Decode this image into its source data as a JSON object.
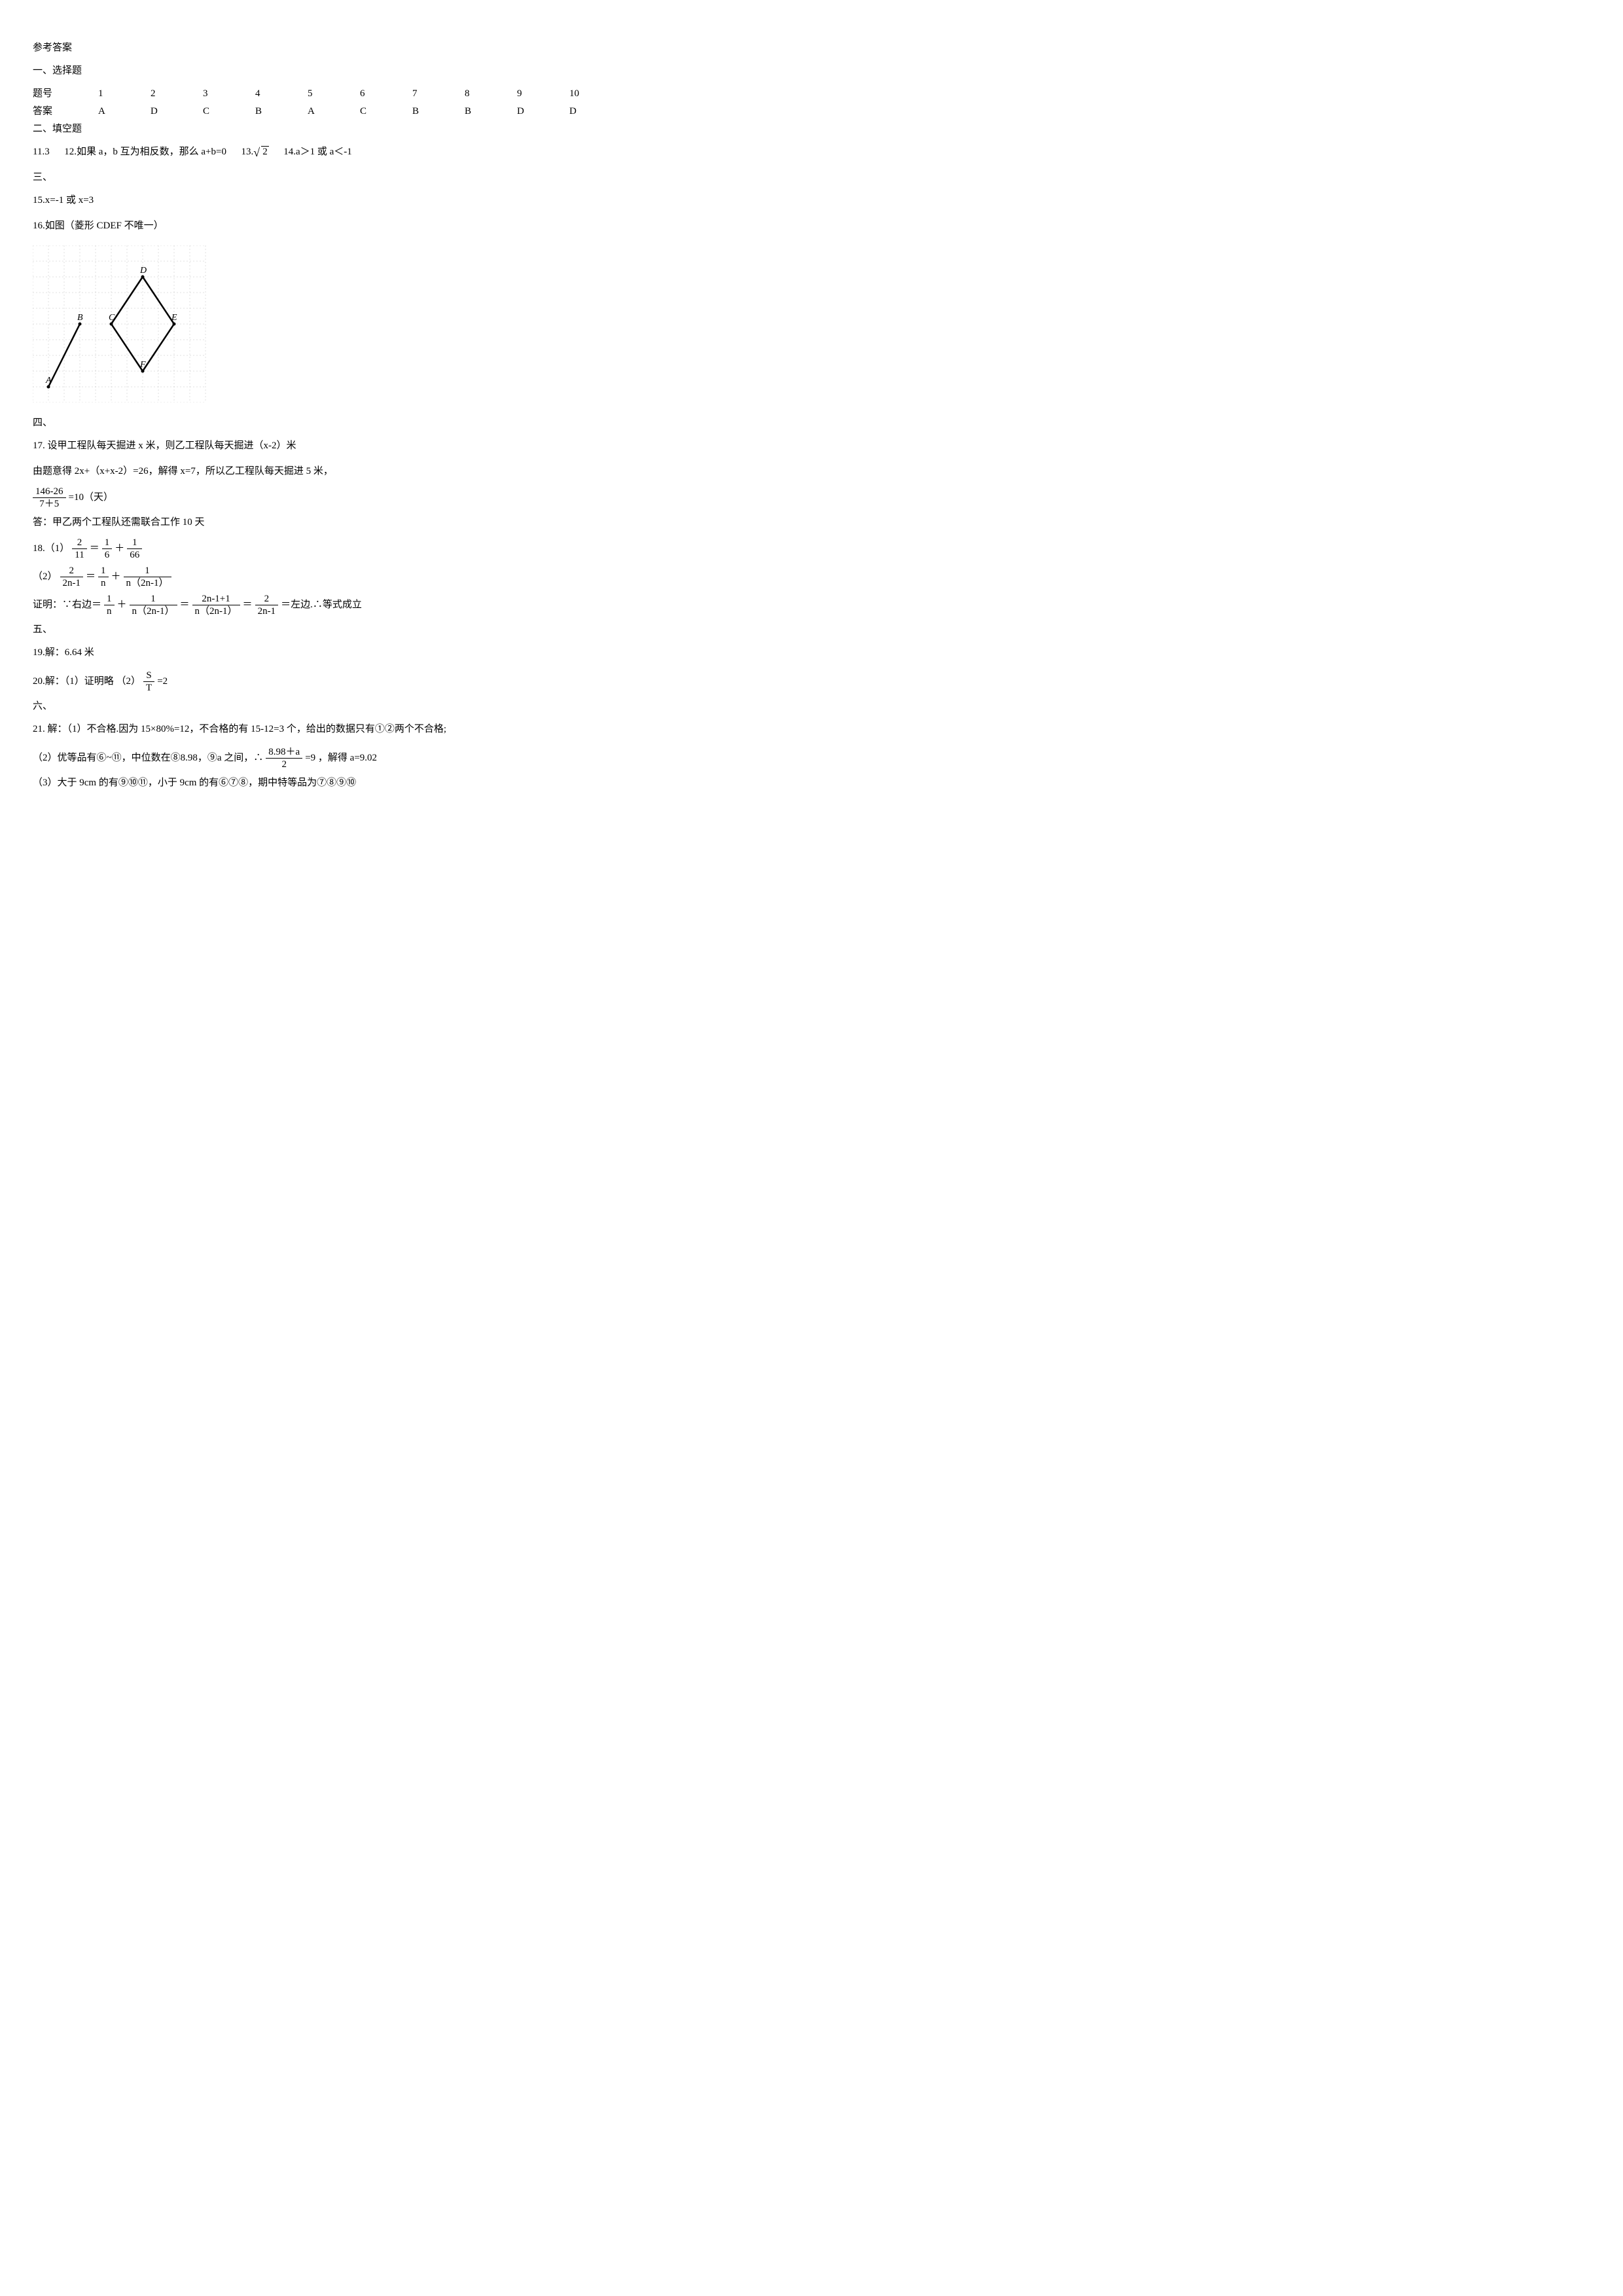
{
  "header": {
    "title": "参考答案"
  },
  "section1": {
    "heading": "一、选择题",
    "table": {
      "row1_label": "题号",
      "row1": [
        "1",
        "2",
        "3",
        "4",
        "5",
        "6",
        "7",
        "8",
        "9",
        "10"
      ],
      "row2_label": "答案",
      "row2": [
        "A",
        "D",
        "C",
        "B",
        "A",
        "C",
        "B",
        "B",
        "D",
        "D"
      ]
    }
  },
  "section2": {
    "heading": "二、填空题",
    "q11": "11.3",
    "q12": "12.如果 a，b 互为相反数，那么 a+b=0",
    "q13_prefix": "13.",
    "q13_val": "2",
    "q14": "14.a＞1 或 a＜-1"
  },
  "section3": {
    "heading": "三、",
    "q15": "15.x=-1 或 x=3",
    "q16": "16.如图（菱形 CDEF 不唯一）",
    "diagram": {
      "grid_color": "#c0c0c0",
      "line_color": "#000000",
      "line_width": 2.5,
      "points": {
        "A": {
          "x": 1,
          "y": 9,
          "label": "A"
        },
        "B": {
          "x": 3,
          "y": 5,
          "label": "B"
        },
        "C": {
          "x": 5,
          "y": 5,
          "label": "C"
        },
        "D": {
          "x": 7,
          "y": 2,
          "label": "D"
        },
        "E": {
          "x": 9,
          "y": 5,
          "label": "E"
        },
        "F": {
          "x": 7,
          "y": 8,
          "label": "F"
        }
      },
      "segments": [
        [
          "A",
          "B"
        ],
        [
          "C",
          "D"
        ],
        [
          "D",
          "E"
        ],
        [
          "E",
          "F"
        ],
        [
          "F",
          "C"
        ]
      ]
    }
  },
  "section4": {
    "heading": "四、",
    "q17": {
      "line1": "17. 设甲工程队每天掘进 x 米，则乙工程队每天掘进（x-2）米",
      "line2": "由题意得 2x+（x+x-2）=26，解得 x=7，所以乙工程队每天掘进 5 米，",
      "frac_num": "146-26",
      "frac_den": "7＋5",
      "frac_eq": "=10（天）",
      "answer": "答：甲乙两个工程队还需联合工作 10 天"
    },
    "q18": {
      "part1_prefix": "18.（1）",
      "eq1": {
        "l_num": "2",
        "l_den": "11",
        "r1_num": "1",
        "r1_den": "6",
        "r2_num": "1",
        "r2_den": "66"
      },
      "part2_prefix": "（2）",
      "eq2": {
        "l_num": "2",
        "l_den": "2n-1",
        "r1_num": "1",
        "r1_den": "n",
        "r2_num": "1",
        "r2_den": "n（2n-1）"
      },
      "proof_prefix": "证明：∵右边＝",
      "proof_eq": {
        "t1_num": "1",
        "t1_den": "n",
        "t2_num": "1",
        "t2_den": "n（2n-1）",
        "t3_num": "2n-1+1",
        "t3_den": "n（2n-1）",
        "t4_num": "2",
        "t4_den": "2n-1"
      },
      "proof_suffix": "＝左边.∴等式成立"
    }
  },
  "section5": {
    "heading": "五、",
    "q19": "19.解：6.64 米",
    "q20_prefix": "20.解：（1）证明略        （2）",
    "q20_frac": {
      "num": "S",
      "den": "T"
    },
    "q20_suffix": "=2"
  },
  "section6": {
    "heading": "六、",
    "q21": {
      "part1": "21. 解：（1）不合格.因为 15×80%=12，不合格的有 15-12=3 个，给出的数据只有①②两个不合格;",
      "part2_prefix": "（2）优等品有⑥~⑪，中位数在⑧8.98，⑨a 之间，∴",
      "part2_frac": {
        "num": "8.98＋a",
        "den": "2"
      },
      "part2_suffix": "=9 ，解得 a=9.02",
      "part3": "（3）大于 9cm 的有⑨⑩⑪，小于 9cm 的有⑥⑦⑧，期中特等品为⑦⑧⑨⑩"
    }
  }
}
